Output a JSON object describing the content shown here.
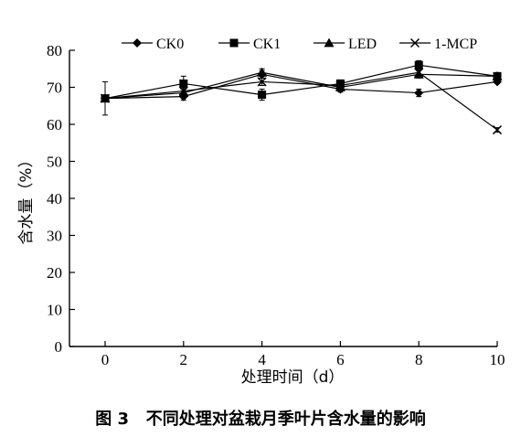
{
  "chart_data": {
    "type": "line",
    "xlabel": "处理时间（d）",
    "ylabel": "含水量（%）",
    "xlim": [
      0,
      10
    ],
    "ylim": [
      0,
      80
    ],
    "x": [
      0,
      2,
      4,
      6,
      8,
      10
    ],
    "xticks": [
      "0",
      "2",
      "4",
      "6",
      "8",
      "10"
    ],
    "yticks": [
      "0",
      "10",
      "20",
      "30",
      "40",
      "50",
      "60",
      "70",
      "80"
    ],
    "grid": false,
    "legend_position": "top",
    "series": [
      {
        "name": "CK0",
        "marker": "diamond",
        "values": [
          67,
          67.5,
          73.5,
          69.5,
          68.5,
          71.5
        ],
        "errors": [
          0,
          1,
          1,
          0.8,
          1,
          0.5
        ]
      },
      {
        "name": "CK1",
        "marker": "square",
        "values": [
          67,
          71,
          68,
          71,
          76,
          73
        ],
        "errors": [
          0,
          2,
          1.5,
          1,
          1.2,
          0.8
        ]
      },
      {
        "name": "LED",
        "marker": "triangle",
        "values": [
          67,
          68.5,
          74,
          70,
          73.5,
          73
        ],
        "errors": [
          0,
          1,
          1,
          0.8,
          1,
          0.5
        ]
      },
      {
        "name": "1-MCP",
        "marker": "x",
        "values": [
          67,
          69,
          71.5,
          70.5,
          74,
          58.5
        ],
        "errors": [
          4.5,
          0.8,
          1,
          0.6,
          0.5,
          0.6
        ]
      }
    ]
  },
  "caption": {
    "number": "图 3",
    "text": "不同处理对盆栽月季叶片含水量的影响"
  }
}
